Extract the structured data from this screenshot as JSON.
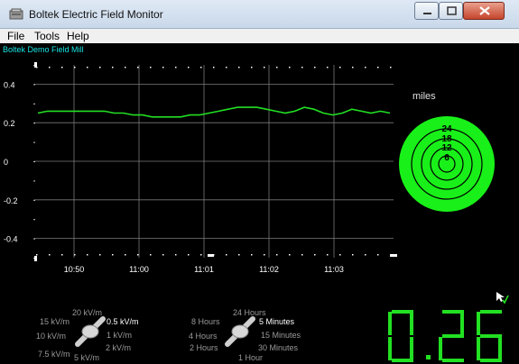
{
  "window": {
    "title": "Boltek Electric Field Monitor"
  },
  "menu": [
    "File",
    "Tools",
    "Help"
  ],
  "station_name": "Boltek Demo Field Mill",
  "radar": {
    "units": "miles",
    "rings": [
      "24",
      "18",
      "12",
      "6"
    ],
    "color": "#19f019"
  },
  "chart_data": {
    "type": "line",
    "ylim": [
      -0.5,
      0.5
    ],
    "ytick_labels": [
      "0.4",
      "0.2",
      "0",
      "-0.2",
      "-0.4"
    ],
    "yticks": [
      0.4,
      0.2,
      0,
      -0.2,
      -0.4
    ],
    "xtick_labels": [
      "10:50",
      "11:00",
      "11:01",
      "11:02",
      "11:03"
    ],
    "grid": true,
    "series": [
      {
        "color": "#22e022",
        "values": [
          0.25,
          0.26,
          0.26,
          0.26,
          0.26,
          0.26,
          0.26,
          0.26,
          0.25,
          0.25,
          0.24,
          0.24,
          0.23,
          0.23,
          0.23,
          0.23,
          0.24,
          0.24,
          0.25,
          0.26,
          0.27,
          0.28,
          0.28,
          0.28,
          0.27,
          0.26,
          0.25,
          0.26,
          0.28,
          0.27,
          0.25,
          0.24,
          0.25,
          0.27,
          0.26,
          0.25,
          0.26,
          0.25
        ]
      }
    ]
  },
  "readout": "0.26",
  "readout_color": "#22e022",
  "scale_knob": {
    "options": [
      "20 kV/m",
      "15 kV/m",
      "10 kV/m",
      "7.5 kV/m",
      "5 kV/m",
      "2 kV/m",
      "1 kV/m",
      "0.5 kV/m"
    ],
    "selected": "0.5 kV/m"
  },
  "time_knob": {
    "options": [
      "24 Hours",
      "8 Hours",
      "4 Hours",
      "2 Hours",
      "1 Hour",
      "30 Minutes",
      "15 Minutes",
      "5 Minutes"
    ],
    "selected": "5 Minutes"
  },
  "icons": [
    "window-app-icon",
    "minimize-icon",
    "maximize-icon",
    "close-icon",
    "cursor-icon"
  ]
}
